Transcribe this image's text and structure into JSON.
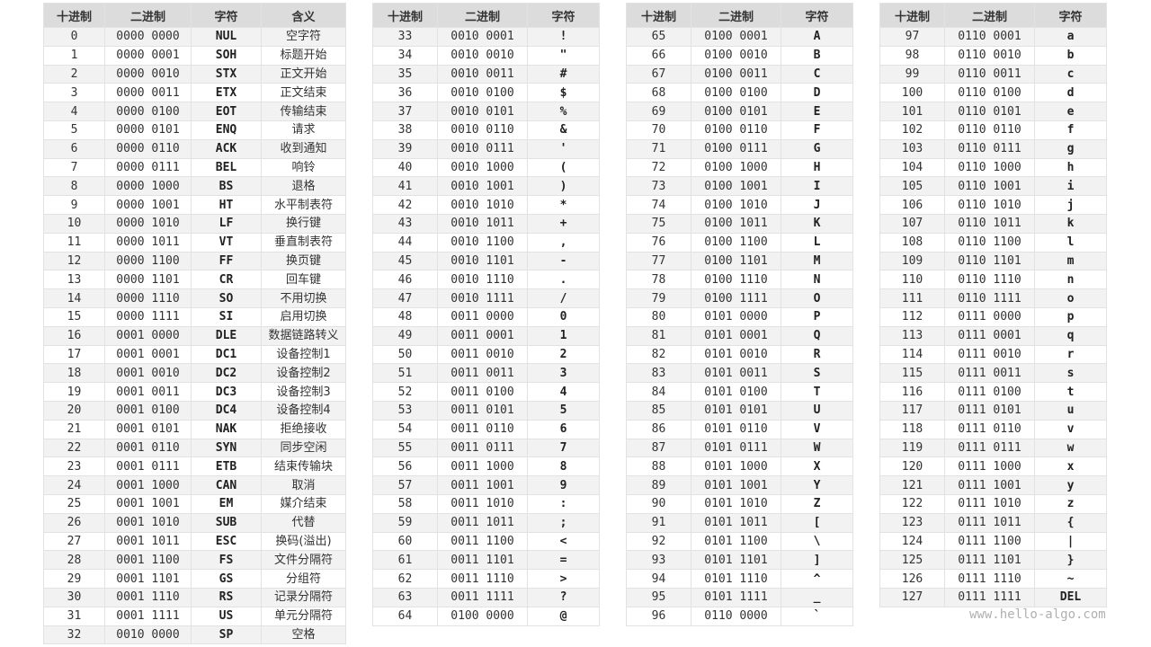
{
  "headers": {
    "dec": "十进制",
    "bin": "二进制",
    "char": "字符",
    "meaning": "含义"
  },
  "watermark": "www.hello-algo.com",
  "colors": {
    "header_bg": "#dcdcdc",
    "row_alt": "#f2f2f2",
    "border": "#e2e2e2"
  },
  "tables": [
    {
      "from": 0,
      "to": 32,
      "has_meaning": true
    },
    {
      "from": 33,
      "to": 64,
      "has_meaning": false
    },
    {
      "from": 65,
      "to": 96,
      "has_meaning": false
    },
    {
      "from": 97,
      "to": 127,
      "has_meaning": false
    }
  ],
  "chars": [
    "NUL",
    "SOH",
    "STX",
    "ETX",
    "EOT",
    "ENQ",
    "ACK",
    "BEL",
    "BS",
    "HT",
    "LF",
    "VT",
    "FF",
    "CR",
    "SO",
    "SI",
    "DLE",
    "DC1",
    "DC2",
    "DC3",
    "DC4",
    "NAK",
    "SYN",
    "ETB",
    "CAN",
    "EM",
    "SUB",
    "ESC",
    "FS",
    "GS",
    "RS",
    "US",
    "SP",
    "!",
    "\"",
    "#",
    "$",
    "%",
    "&",
    "'",
    "(",
    ")",
    "*",
    "+",
    ",",
    "-",
    ".",
    "/",
    "0",
    "1",
    "2",
    "3",
    "4",
    "5",
    "6",
    "7",
    "8",
    "9",
    ":",
    ";",
    "<",
    "=",
    ">",
    "?",
    "@",
    "A",
    "B",
    "C",
    "D",
    "E",
    "F",
    "G",
    "H",
    "I",
    "J",
    "K",
    "L",
    "M",
    "N",
    "O",
    "P",
    "Q",
    "R",
    "S",
    "T",
    "U",
    "V",
    "W",
    "X",
    "Y",
    "Z",
    "[",
    "\\",
    "]",
    "^",
    "_",
    "`",
    "a",
    "b",
    "c",
    "d",
    "e",
    "f",
    "g",
    "h",
    "i",
    "j",
    "k",
    "l",
    "m",
    "n",
    "o",
    "p",
    "q",
    "r",
    "s",
    "t",
    "u",
    "v",
    "w",
    "x",
    "y",
    "z",
    "{",
    "|",
    "}",
    "~",
    "DEL"
  ],
  "meanings": [
    "空字符",
    "标题开始",
    "正文开始",
    "正文结束",
    "传输结束",
    "请求",
    "收到通知",
    "响铃",
    "退格",
    "水平制表符",
    "换行键",
    "垂直制表符",
    "换页键",
    "回车键",
    "不用切换",
    "启用切换",
    "数据链路转义",
    "设备控制1",
    "设备控制2",
    "设备控制3",
    "设备控制4",
    "拒绝接收",
    "同步空闲",
    "结束传输块",
    "取消",
    "媒介结束",
    "代替",
    "换码(溢出)",
    "文件分隔符",
    "分组符",
    "记录分隔符",
    "单元分隔符",
    "空格"
  ]
}
